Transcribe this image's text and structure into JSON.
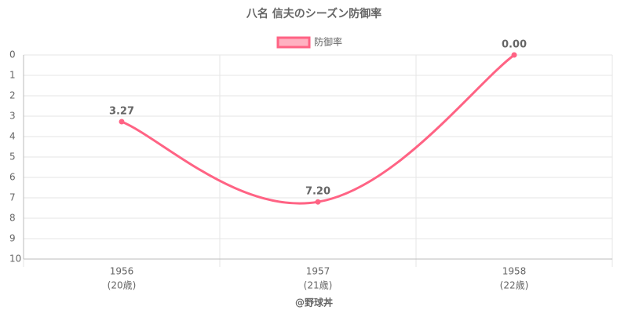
{
  "chart_data": {
    "type": "line",
    "title": "八名 信夫のシーズン防御率",
    "categories": [
      "1956",
      "1957",
      "1958"
    ],
    "category_sublabels": [
      "(20歳)",
      "(21歳)",
      "(22歳)"
    ],
    "series": [
      {
        "name": "防御率",
        "color": "#ff6384",
        "values": [
          3.27,
          7.2,
          0
        ],
        "value_labels": [
          "3.27",
          "7.20",
          "0.00"
        ]
      }
    ],
    "ylim": [
      0,
      10
    ],
    "yticks": [
      0,
      1,
      2,
      3,
      4,
      5,
      6,
      7,
      8,
      9,
      10
    ],
    "y_reversed": true,
    "grid": true,
    "legend": "top",
    "xlabel": "@野球丼"
  }
}
